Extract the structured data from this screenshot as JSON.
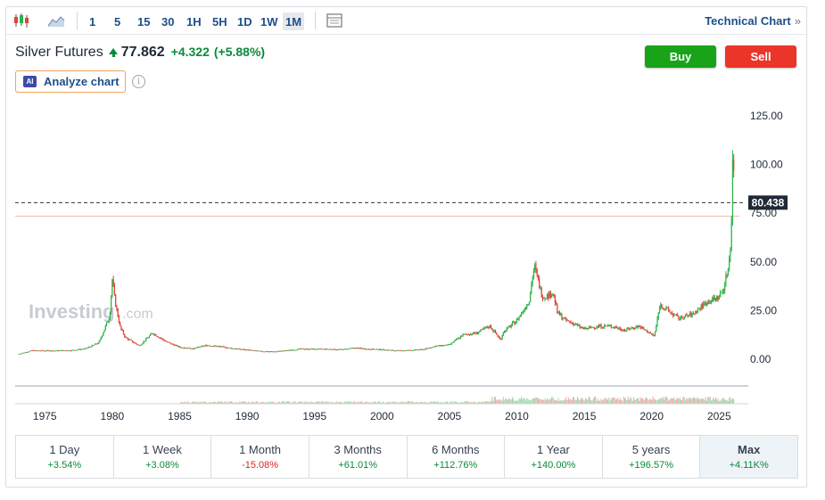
{
  "toolbar": {
    "timeframes": [
      "1",
      "5",
      "15",
      "30",
      "1H",
      "5H",
      "1D",
      "1W",
      "1M"
    ],
    "active_timeframe": "1M",
    "icons": [
      "candlestick-chart-icon",
      "area-chart-icon",
      "chart-layout-icon"
    ],
    "technical_chart": "Technical Chart",
    "technical_chart_chevron": "»"
  },
  "header": {
    "instrument": "Silver Futures",
    "price": "77.862",
    "change": "+4.322",
    "change_pct": "(+5.88%)",
    "trend_icon": "up-arrow-icon"
  },
  "actions": {
    "buy": "Buy",
    "sell": "Sell",
    "buy_color": "#19a319",
    "sell_color": "#ea3528"
  },
  "analyze": {
    "badge": "AI",
    "label": "Analyze chart",
    "info": "i"
  },
  "chart_data": {
    "type": "candlestick",
    "watermark_main": "Investing",
    "watermark_suffix": ".com",
    "x_ticks": [
      "1975",
      "1980",
      "1985",
      "1990",
      "1995",
      "2000",
      "2005",
      "2010",
      "2015",
      "2020",
      "2025"
    ],
    "y_ticks": [
      "125.00",
      "100.00",
      "75.00",
      "50.00",
      "25.00",
      "0.00"
    ],
    "ylim": [
      -10,
      130
    ],
    "xlim": [
      1972.8,
      2026.5
    ],
    "current_price_label": "80.438",
    "current_price": 80.438,
    "reference_line": 73.5,
    "up_color": "#2db34a",
    "down_color": "#e0443a",
    "series": [
      {
        "name": "",
        "points": [
          [
            1973,
            2.6
          ],
          [
            1974,
            4.4
          ],
          [
            1975,
            4.4
          ],
          [
            1976,
            4.4
          ],
          [
            1977,
            4.6
          ],
          [
            1978,
            5.4
          ],
          [
            1979,
            8.5
          ],
          [
            1979.8,
            22
          ],
          [
            1980.0,
            41
          ],
          [
            1980.2,
            30
          ],
          [
            1980.6,
            16
          ],
          [
            1981,
            11
          ],
          [
            1982,
            7
          ],
          [
            1983,
            13.5
          ],
          [
            1984,
            9
          ],
          [
            1985,
            6.2
          ],
          [
            1986,
            5.5
          ],
          [
            1987,
            7.2
          ],
          [
            1988,
            6.5
          ],
          [
            1989,
            5.5
          ],
          [
            1990,
            4.8
          ],
          [
            1991,
            4.1
          ],
          [
            1992,
            3.9
          ],
          [
            1993,
            4.5
          ],
          [
            1994,
            5.3
          ],
          [
            1995,
            5.2
          ],
          [
            1996,
            5.2
          ],
          [
            1997,
            5.0
          ],
          [
            1998,
            5.8
          ],
          [
            1999,
            5.2
          ],
          [
            2000,
            5.0
          ],
          [
            2001,
            4.4
          ],
          [
            2002,
            4.6
          ],
          [
            2003,
            5.0
          ],
          [
            2004,
            6.8
          ],
          [
            2005,
            7.4
          ],
          [
            2006,
            12.5
          ],
          [
            2007,
            13.5
          ],
          [
            2008,
            17
          ],
          [
            2008.8,
            10
          ],
          [
            2009,
            14
          ],
          [
            2010,
            20
          ],
          [
            2010.9,
            30
          ],
          [
            2011.3,
            48
          ],
          [
            2011.8,
            34
          ],
          [
            2012,
            32
          ],
          [
            2012.7,
            34
          ],
          [
            2013,
            24
          ],
          [
            2013.6,
            20
          ],
          [
            2014,
            19
          ],
          [
            2015,
            15.5
          ],
          [
            2016,
            17
          ],
          [
            2017,
            17
          ],
          [
            2018,
            15
          ],
          [
            2019,
            17
          ],
          [
            2020.2,
            12
          ],
          [
            2020.6,
            28
          ],
          [
            2021,
            26
          ],
          [
            2022,
            21
          ],
          [
            2023,
            23
          ],
          [
            2024,
            29
          ],
          [
            2025.0,
            32
          ],
          [
            2025.4,
            38
          ],
          [
            2025.7,
            48
          ],
          [
            2025.85,
            60
          ],
          [
            2025.95,
            80
          ],
          [
            2026.05,
            121
          ],
          [
            2026.1,
            90
          ],
          [
            2026.15,
            80.4
          ]
        ]
      }
    ]
  },
  "periods": [
    {
      "label": "1 Day",
      "value": "+3.54%",
      "sign": "pos"
    },
    {
      "label": "1 Week",
      "value": "+3.08%",
      "sign": "pos"
    },
    {
      "label": "1 Month",
      "value": "-15.08%",
      "sign": "neg"
    },
    {
      "label": "3 Months",
      "value": "+61.01%",
      "sign": "pos"
    },
    {
      "label": "6 Months",
      "value": "+112.76%",
      "sign": "pos"
    },
    {
      "label": "1 Year",
      "value": "+140.00%",
      "sign": "pos"
    },
    {
      "label": "5 years",
      "value": "+196.57%",
      "sign": "pos"
    },
    {
      "label": "Max",
      "value": "+4.11K%",
      "sign": "pos"
    }
  ],
  "active_period": "Max"
}
